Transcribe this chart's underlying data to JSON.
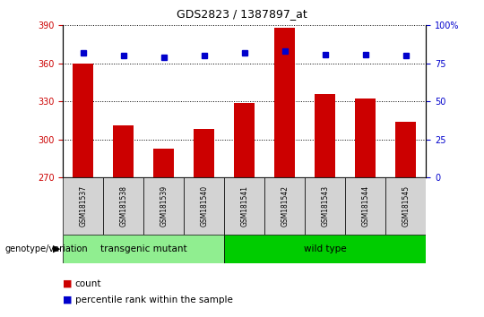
{
  "title": "GDS2823 / 1387897_at",
  "samples": [
    "GSM181537",
    "GSM181538",
    "GSM181539",
    "GSM181540",
    "GSM181541",
    "GSM181542",
    "GSM181543",
    "GSM181544",
    "GSM181545"
  ],
  "counts": [
    360,
    311,
    293,
    308,
    329,
    388,
    336,
    332,
    314
  ],
  "percentiles": [
    82,
    80,
    79,
    80,
    82,
    83,
    81,
    81,
    80
  ],
  "ylim_left": [
    270,
    390
  ],
  "ylim_right": [
    0,
    100
  ],
  "yticks_left": [
    270,
    300,
    330,
    360,
    390
  ],
  "yticks_right": [
    0,
    25,
    50,
    75,
    100
  ],
  "groups": [
    {
      "label": "transgenic mutant",
      "start": 0,
      "end": 4,
      "color": "#90ee90"
    },
    {
      "label": "wild type",
      "start": 4,
      "end": 9,
      "color": "#00cc00"
    }
  ],
  "bar_color": "#cc0000",
  "dot_color": "#0000cc",
  "bar_width": 0.5,
  "grid_color": "black",
  "left_axis_color": "#cc0000",
  "right_axis_color": "#0000cc",
  "background_bar": "#d3d3d3",
  "genotype_label": "genotype/variation",
  "legend_count": "count",
  "legend_percentile": "percentile rank within the sample",
  "fig_width": 5.4,
  "fig_height": 3.54,
  "dpi": 100
}
